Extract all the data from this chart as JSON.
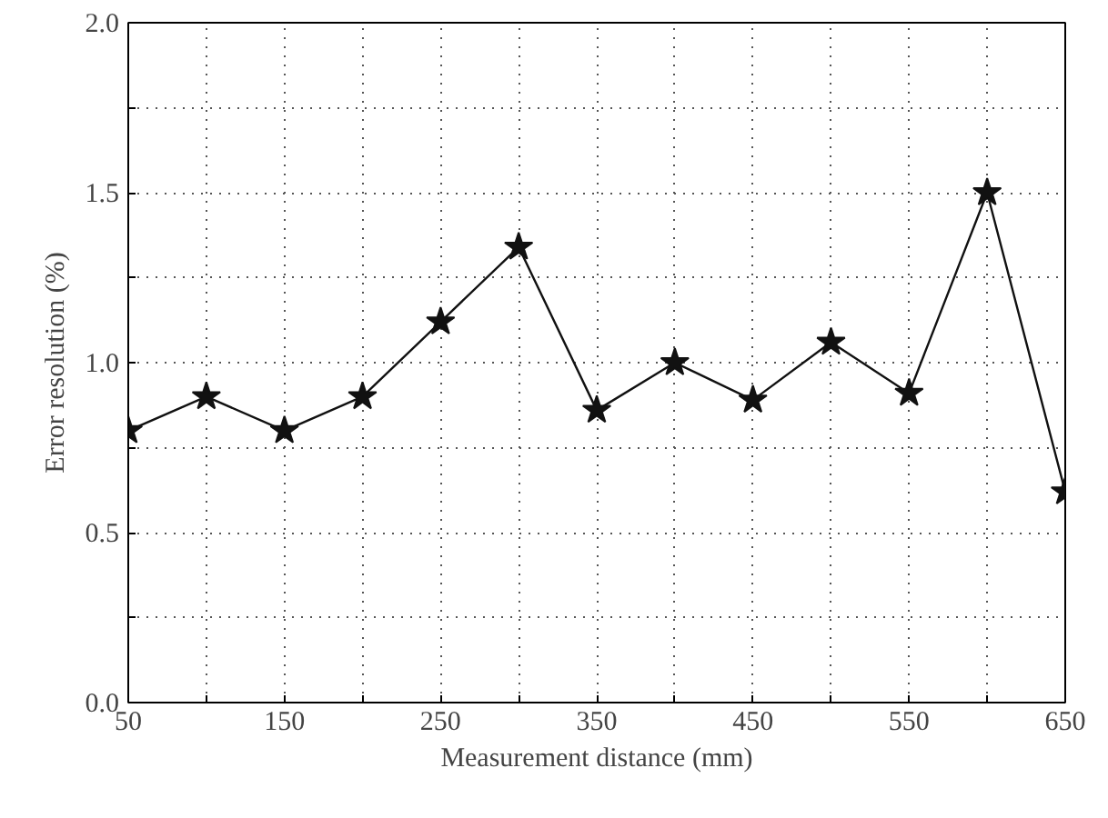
{
  "chart_data": {
    "type": "line",
    "xlabel": "Measurement distance (mm)",
    "ylabel": "Error resolution (%)",
    "x": [
      50,
      100,
      150,
      200,
      250,
      300,
      350,
      400,
      450,
      500,
      550,
      600,
      650
    ],
    "series": [
      {
        "color": "#111111",
        "values": [
          0.8,
          0.9,
          0.8,
          0.9,
          1.12,
          1.34,
          0.86,
          1.0,
          0.89,
          1.06,
          0.91,
          1.5,
          0.62
        ]
      }
    ],
    "xlim": [
      50,
      650
    ],
    "ylim": [
      0,
      2.0
    ],
    "xticks": [
      50,
      {
        "value": 100,
        "label": null
      },
      150,
      {
        "value": 200,
        "label": null
      },
      250,
      {
        "value": 300,
        "label": null
      },
      350,
      {
        "value": 400,
        "label": null
      },
      450,
      {
        "value": 500,
        "label": null
      },
      550,
      {
        "value": 600,
        "label": null
      },
      650
    ],
    "yticks": [
      {
        "value": 0,
        "label": "0.0"
      },
      {
        "value": 0.25,
        "label": null
      },
      0.5,
      {
        "value": 0.75,
        "label": null
      },
      {
        "value": 1.0,
        "label": "1.0"
      },
      {
        "value": 1.25,
        "label": null
      },
      1.5,
      {
        "value": 1.75,
        "label": null
      },
      {
        "value": 2.0,
        "label": "2.0"
      }
    ],
    "grid": true,
    "marker": "star",
    "line_style": "solid"
  }
}
